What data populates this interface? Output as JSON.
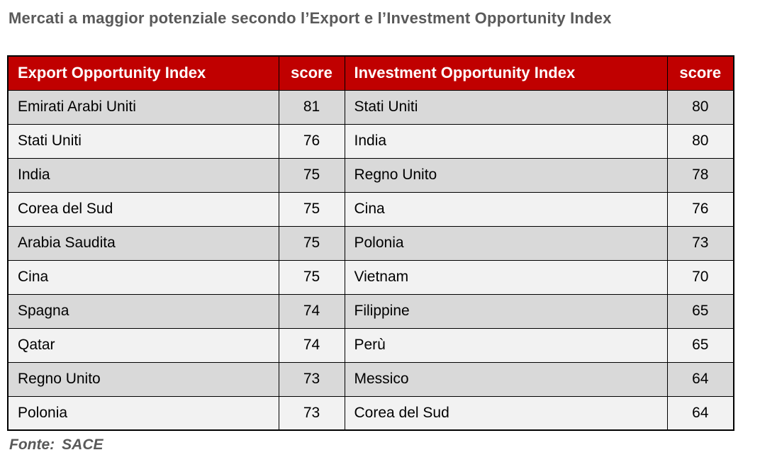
{
  "title": "Mercati a maggior potenziale secondo l’Export e l’Investment Opportunity Index",
  "source": {
    "label": "Fonte:",
    "value": "SACE"
  },
  "chart_data": {
    "type": "table",
    "title": "Mercati a maggior potenziale secondo l’Export e l’Investment Opportunity Index",
    "columns": [
      "Export Opportunity Index",
      "score",
      "Investment Opportunity Index",
      "score"
    ],
    "rows": [
      [
        "Emirati Arabi Uniti",
        81,
        "Stati Uniti",
        80
      ],
      [
        "Stati Uniti",
        76,
        "India",
        80
      ],
      [
        "India",
        75,
        "Regno Unito",
        78
      ],
      [
        "Corea del Sud",
        75,
        "Cina",
        76
      ],
      [
        "Arabia Saudita",
        75,
        "Polonia",
        73
      ],
      [
        "Cina",
        75,
        "Vietnam",
        70
      ],
      [
        "Spagna",
        74,
        "Filippine",
        65
      ],
      [
        "Qatar",
        74,
        "Perù",
        65
      ],
      [
        "Regno Unito",
        73,
        "Messico",
        64
      ],
      [
        "Polonia",
        73,
        "Corea del Sud",
        64
      ]
    ],
    "source": "Fonte: SACE",
    "layout_hints": {
      "header_style": "red band, white bold text",
      "row_striping": "odd rows dark gray, even rows light gray",
      "score_alignment": "center",
      "market_alignment": "left"
    }
  },
  "colors": {
    "header_bg": "#C00000",
    "header_text": "#FFFFFF",
    "row_odd_bg": "#D9D9D9",
    "row_even_bg": "#F2F2F2",
    "cell_text": "#000000",
    "border": "#000000",
    "title_text": "#595959",
    "source_text": "#595959",
    "page_bg": "#FFFFFF"
  }
}
